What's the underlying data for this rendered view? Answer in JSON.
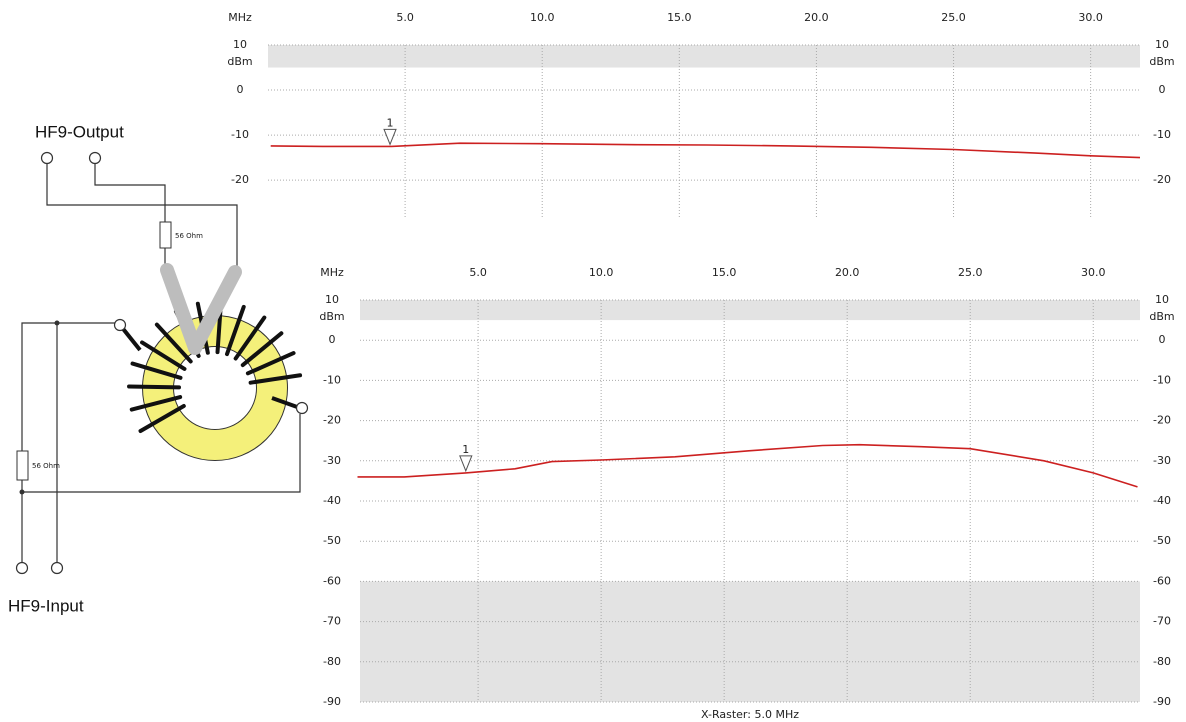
{
  "diagram": {
    "output_label": "HF9-Output",
    "input_label": "HF9-Input",
    "output_resistor": "56 Ohm",
    "input_resistor": "56 Ohm"
  },
  "chart_data": [
    {
      "type": "line",
      "x_unit": "MHz",
      "y_unit": "dBm",
      "x": [
        0.1,
        2,
        4.5,
        7,
        10,
        13,
        16,
        19,
        22,
        25,
        28,
        30,
        31.8
      ],
      "values": [
        -12.4,
        -12.5,
        -12.5,
        -11.8,
        -11.9,
        -12.1,
        -12.2,
        -12.4,
        -12.7,
        -13.2,
        -14,
        -14.6,
        -15
      ],
      "color": "#cc2020",
      "xlim": [
        0,
        31.8
      ],
      "ylim": [
        -28.4,
        10
      ],
      "xticks": [
        {
          "value": 5,
          "label": "5.0"
        },
        {
          "value": 10,
          "label": "10.0"
        },
        {
          "value": 15,
          "label": "15.0"
        },
        {
          "value": 20,
          "label": "20.0"
        },
        {
          "value": 25,
          "label": "25.0"
        },
        {
          "value": 30,
          "label": "30.0"
        }
      ],
      "yticks": [
        10,
        0,
        -10,
        -20
      ],
      "shaded_bands": [
        {
          "from": 5,
          "to": 10
        }
      ],
      "markers": [
        {
          "label": "1",
          "x": 4.45,
          "y": -12.5
        }
      ],
      "grid": true
    },
    {
      "type": "line",
      "x_unit": "MHz",
      "y_unit": "dBm",
      "x": [
        0.1,
        2,
        4.5,
        6.5,
        8,
        10,
        13,
        16,
        19,
        20.5,
        23,
        25,
        28,
        30,
        31.8
      ],
      "values": [
        -34,
        -34,
        -33,
        -32,
        -30.2,
        -29.8,
        -29,
        -27.5,
        -26.2,
        -26,
        -26.5,
        -27,
        -30,
        -33,
        -36.5
      ],
      "color": "#cc2020",
      "xlim": [
        0.2,
        31.9
      ],
      "ylim": [
        -90,
        10
      ],
      "xticks": [
        {
          "value": 5,
          "label": "5.0"
        },
        {
          "value": 10,
          "label": "10.0"
        },
        {
          "value": 15,
          "label": "15.0"
        },
        {
          "value": 20,
          "label": "20.0"
        },
        {
          "value": 25,
          "label": "25.0"
        },
        {
          "value": 30,
          "label": "30.0"
        }
      ],
      "yticks": [
        10,
        0,
        -10,
        -20,
        -30,
        -40,
        -50,
        -60,
        -70,
        -80,
        -90
      ],
      "shaded_bands": [
        {
          "from": 5,
          "to": 10
        },
        {
          "from": -90,
          "to": -60
        }
      ],
      "markers": [
        {
          "label": "1",
          "x": 4.5,
          "y": -33
        }
      ],
      "footnote": "X-Raster: 5.0 MHz",
      "grid": true
    }
  ]
}
